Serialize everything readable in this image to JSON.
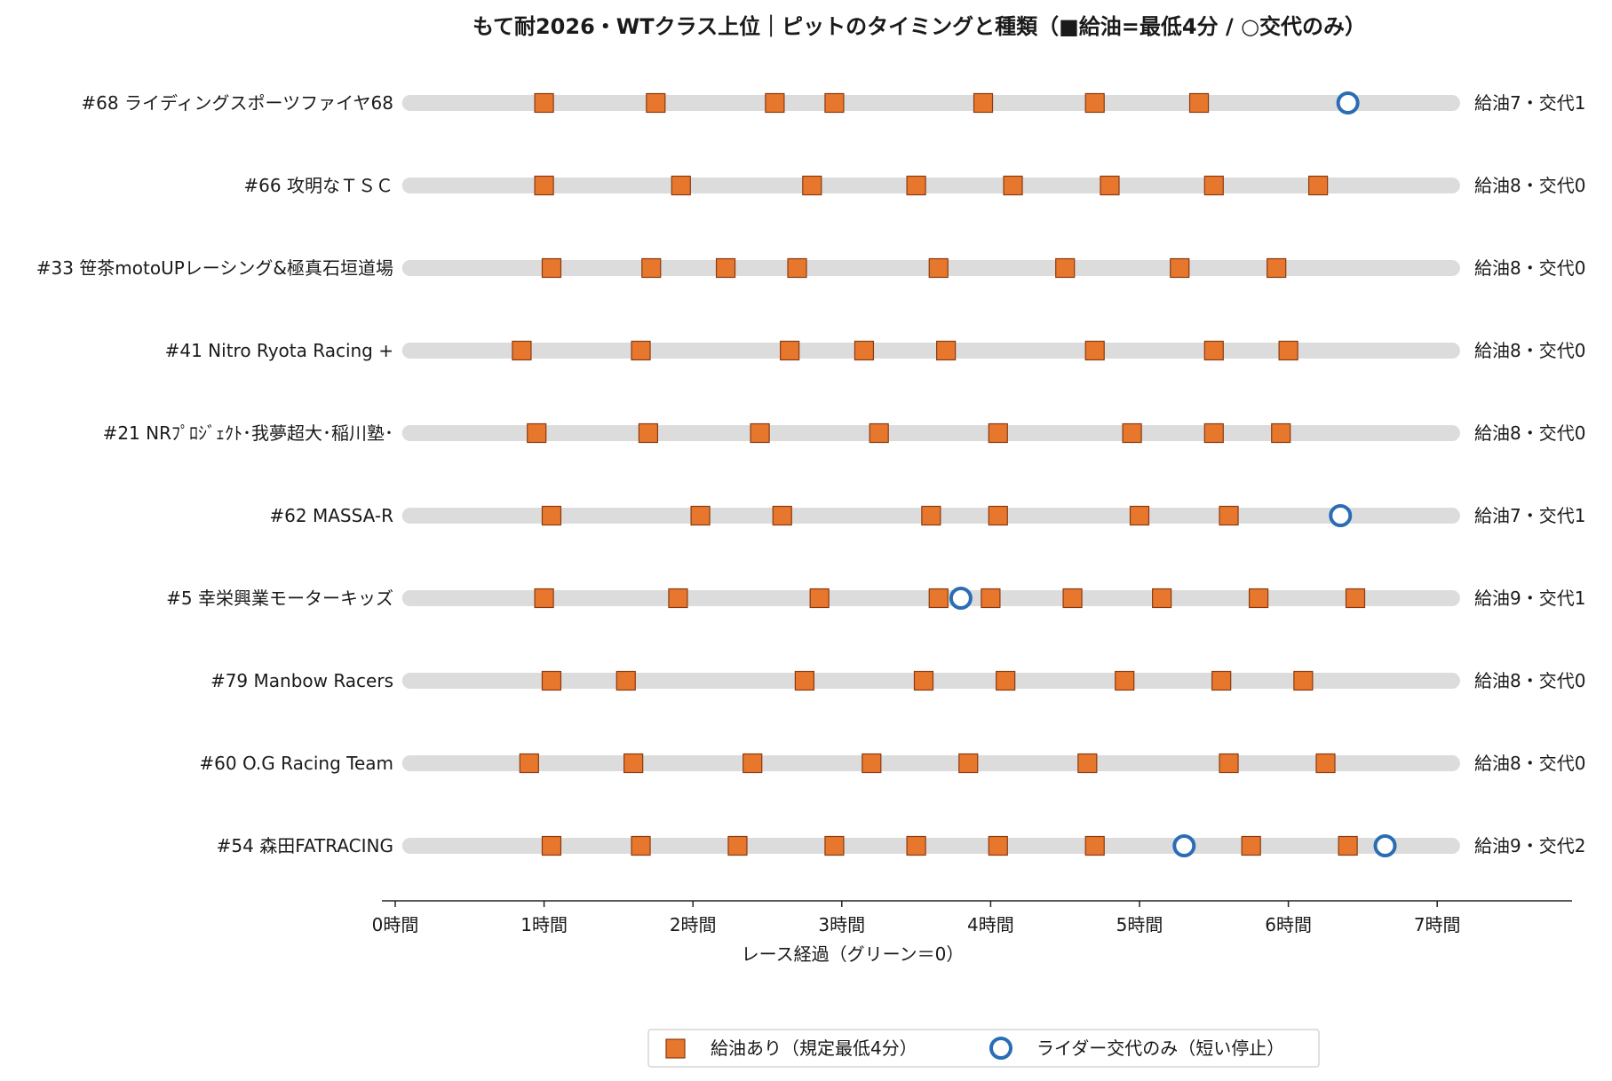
{
  "chart_data": {
    "type": "scatter",
    "title": "もて耐2026・WTクラス上位｜ピットのタイミングと種類（■給油=最低4分 / ○交代のみ）",
    "xlabel": "レース経過（グリーン＝0）",
    "ylabel": "",
    "xlim": [
      0,
      7.8
    ],
    "xticks": [
      0,
      1,
      2,
      3,
      4,
      5,
      6,
      7
    ],
    "xtick_labels": [
      "0時間",
      "1時間",
      "2時間",
      "3時間",
      "4時間",
      "5時間",
      "6時間",
      "7時間"
    ],
    "track_range": [
      0.1,
      7.1
    ],
    "grid": false,
    "legend": {
      "placement": "bottom-center",
      "entries": [
        {
          "marker": "square",
          "label": "給油あり（規定最低4分）"
        },
        {
          "marker": "circle",
          "label": "ライダー交代のみ（短い停止）"
        }
      ]
    },
    "colors": {
      "refuel_fill": "#e8772e",
      "refuel_edge": "#8a3a10",
      "swap_edge": "#2a6db5",
      "track": "#dcdcdc",
      "axis": "#222222"
    },
    "teams": [
      {
        "name": "#68 ライディングスポーツファイヤ68",
        "summary": "給油7・交代1",
        "refuel": [
          1.0,
          1.75,
          2.55,
          2.95,
          3.95,
          4.7,
          5.4
        ],
        "swap": [
          6.4
        ]
      },
      {
        "name": "#66 攻明なＴＳＣ",
        "summary": "給油8・交代0",
        "refuel": [
          1.0,
          1.92,
          2.8,
          3.5,
          4.15,
          4.8,
          5.5,
          6.2
        ],
        "swap": []
      },
      {
        "name": "#33 笹茶motoUPレーシング&極真石垣道場",
        "summary": "給油8・交代0",
        "refuel": [
          1.05,
          1.72,
          2.22,
          2.7,
          3.65,
          4.5,
          5.27,
          5.92
        ],
        "swap": []
      },
      {
        "name": "#41 Nitro Ryota Racing +",
        "summary": "給油8・交代0",
        "refuel": [
          0.85,
          1.65,
          2.65,
          3.15,
          3.7,
          4.7,
          5.5,
          6.0
        ],
        "swap": []
      },
      {
        "name": "#21 NRﾌﾟﾛｼﾞｪｸﾄ･我夢超大･稲川塾･",
        "summary": "給油8・交代0",
        "refuel": [
          0.95,
          1.7,
          2.45,
          3.25,
          4.05,
          4.95,
          5.5,
          5.95
        ],
        "swap": []
      },
      {
        "name": "#62 MASSA-R",
        "summary": "給油7・交代1",
        "refuel": [
          1.05,
          2.05,
          2.6,
          3.6,
          4.05,
          5.0,
          5.6
        ],
        "swap": [
          6.35
        ]
      },
      {
        "name": "#5 幸栄興業モーターキッズ",
        "summary": "給油9・交代1",
        "refuel": [
          1.0,
          1.9,
          2.85,
          3.65,
          4.0,
          4.55,
          5.15,
          5.8,
          6.45
        ],
        "swap": [
          3.8
        ]
      },
      {
        "name": "#79 Manbow Racers",
        "summary": "給油8・交代0",
        "refuel": [
          1.05,
          1.55,
          2.75,
          3.55,
          4.1,
          4.9,
          5.55,
          6.1
        ],
        "swap": []
      },
      {
        "name": "#60 O.G Racing Team",
        "summary": "給油8・交代0",
        "refuel": [
          0.9,
          1.6,
          2.4,
          3.2,
          3.85,
          4.65,
          5.6,
          6.25
        ],
        "swap": []
      },
      {
        "name": "#54 森田FATRACING",
        "summary": "給油9・交代2",
        "refuel": [
          1.05,
          1.65,
          2.3,
          2.95,
          3.5,
          4.05,
          4.7,
          5.75,
          6.4
        ],
        "swap": [
          5.3,
          6.65
        ]
      }
    ]
  }
}
